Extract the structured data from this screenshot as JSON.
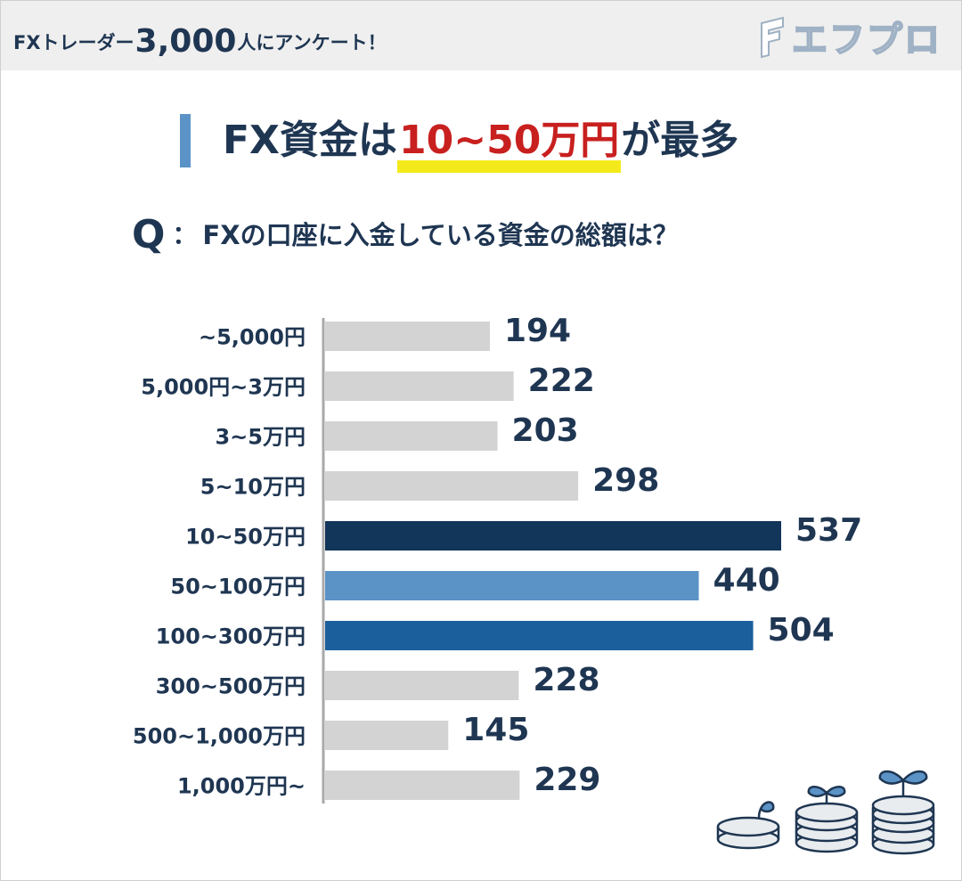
{
  "header": {
    "survey_prefix": "FXトレーダー",
    "survey_count": "3,000",
    "survey_suffix": "人にアンケート！",
    "logo_text": "エフプロ"
  },
  "headline": {
    "before": "FX資金は",
    "highlight": "10~50万円",
    "after": "が最多"
  },
  "question": {
    "mark": "Q",
    "colon": "：",
    "text": "FXの口座に入金している資金の総額は？"
  },
  "colors": {
    "default_bar": "#d3d3d3",
    "top_bar": "#12355a",
    "second_bar": "#1b5f9c",
    "third_bar": "#5b93c7",
    "highlight_text": "#c8201f",
    "highlight_marker": "#f4ea1b",
    "text": "#1f3652"
  },
  "chart_data": {
    "type": "bar",
    "orientation": "horizontal",
    "categories": [
      "~5,000円",
      "5,000円~3万円",
      "3~5万円",
      "5~10万円",
      "10~50万円",
      "50~100万円",
      "100~300万円",
      "300~500万円",
      "500~1,000万円",
      "1,000万円~"
    ],
    "values": [
      194,
      222,
      203,
      298,
      537,
      440,
      504,
      228,
      145,
      229
    ],
    "bar_colors": [
      "#d3d3d3",
      "#d3d3d3",
      "#d3d3d3",
      "#d3d3d3",
      "#12355a",
      "#5b93c7",
      "#1b5f9c",
      "#d3d3d3",
      "#d3d3d3",
      "#d3d3d3"
    ],
    "xlim": [
      0,
      537
    ],
    "grid": false,
    "legend": "none"
  }
}
